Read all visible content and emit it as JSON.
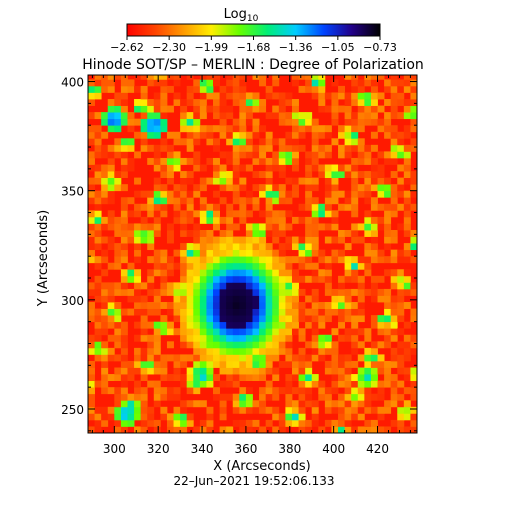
{
  "chart_data": {
    "type": "heatmap",
    "title": "Hinode SOT/SP – MERLIN : Degree of Polarization",
    "xlabel": "X (Arcseconds)",
    "ylabel": "Y (Arcseconds)",
    "xlim": [
      288,
      438
    ],
    "ylim": [
      239,
      403
    ],
    "x_ticks": [
      300,
      320,
      340,
      360,
      380,
      400,
      420
    ],
    "y_ticks": [
      250,
      300,
      350,
      400
    ],
    "colorbar": {
      "label_base": "Log",
      "label_sub": "10",
      "ticks": [
        "−2.62",
        "−2.30",
        "−1.99",
        "−1.68",
        "−1.36",
        "−1.05",
        "−0.73"
      ],
      "min": -2.62,
      "max": -0.73,
      "colors": [
        "#ff0000",
        "#ff4400",
        "#ff9900",
        "#ffee00",
        "#66ff00",
        "#00ee77",
        "#00ccff",
        "#0044ff",
        "#220088",
        "#000000"
      ]
    },
    "background_value": -2.45,
    "features": [
      {
        "name": "central-spot-core",
        "x": 356,
        "y": 298,
        "value": -0.73
      },
      {
        "name": "central-spot-ring",
        "x": 356,
        "y": 298,
        "value": -1.36
      },
      {
        "name": "central-halo",
        "x": 356,
        "y": 298,
        "value": -1.99
      },
      {
        "name": "patch-upper-left",
        "x": 300,
        "y": 383,
        "value": -1.05
      },
      {
        "name": "patch-upper-left-2",
        "x": 318,
        "y": 380,
        "value": -1.05
      },
      {
        "name": "patch-lower-left",
        "x": 306,
        "y": 248,
        "value": -1.2
      },
      {
        "name": "patch-lower-mid",
        "x": 340,
        "y": 266,
        "value": -1.3
      },
      {
        "name": "patch-lower-right",
        "x": 415,
        "y": 265,
        "value": -1.4
      }
    ],
    "grid": false,
    "legend": "colorbar-top"
  },
  "footer": {
    "timestamp": "22–Jun–2021 19:52:06.133"
  }
}
